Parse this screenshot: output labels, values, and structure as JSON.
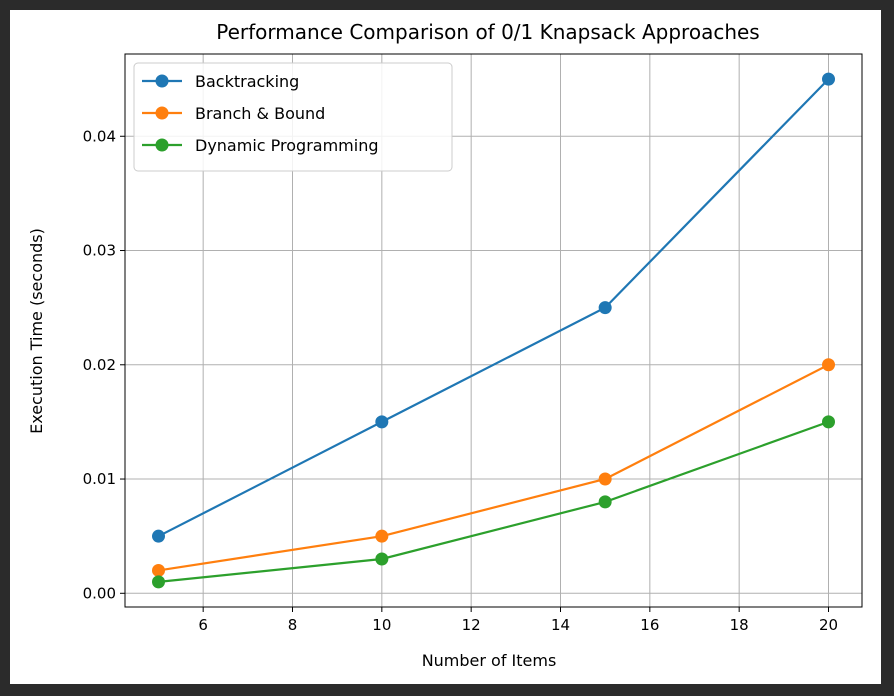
{
  "chart_data": {
    "type": "line",
    "title": "Performance Comparison of 0/1 Knapsack Approaches",
    "xlabel": "Number of Items",
    "ylabel": "Execution Time (seconds)",
    "x": [
      5,
      10,
      15,
      20
    ],
    "xlim": [
      4.25,
      20.75
    ],
    "ylim": [
      -0.0012,
      0.0472
    ],
    "xticks": [
      6,
      8,
      10,
      12,
      14,
      16,
      18,
      20
    ],
    "xtick_labels": [
      "6",
      "8",
      "10",
      "12",
      "14",
      "16",
      "18",
      "20"
    ],
    "yticks": [
      0.0,
      0.01,
      0.02,
      0.03,
      0.04
    ],
    "ytick_labels": [
      "0.00",
      "0.01",
      "0.02",
      "0.03",
      "0.04"
    ],
    "grid": true,
    "legend_position": "top-left",
    "marker": "circle",
    "series": [
      {
        "name": "Backtracking",
        "color": "#1f77b4",
        "values": [
          0.005,
          0.015,
          0.025,
          0.045
        ]
      },
      {
        "name": "Branch & Bound",
        "color": "#ff7f0e",
        "values": [
          0.002,
          0.005,
          0.01,
          0.02
        ]
      },
      {
        "name": "Dynamic Programming",
        "color": "#2ca02c",
        "values": [
          0.001,
          0.003,
          0.008,
          0.015
        ]
      }
    ]
  }
}
